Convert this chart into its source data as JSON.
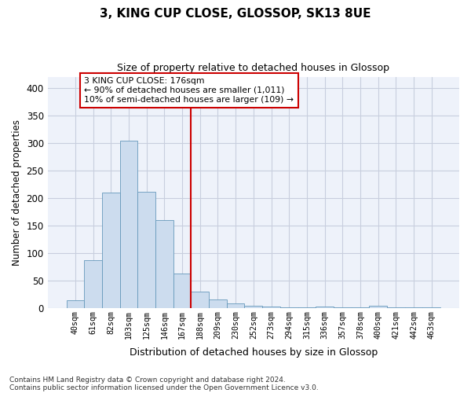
{
  "title": "3, KING CUP CLOSE, GLOSSOP, SK13 8UE",
  "subtitle": "Size of property relative to detached houses in Glossop",
  "xlabel": "Distribution of detached houses by size in Glossop",
  "ylabel": "Number of detached properties",
  "bar_color": "#ccdcee",
  "bar_edge_color": "#6699bb",
  "categories": [
    "40sqm",
    "61sqm",
    "82sqm",
    "103sqm",
    "125sqm",
    "146sqm",
    "167sqm",
    "188sqm",
    "209sqm",
    "230sqm",
    "252sqm",
    "273sqm",
    "294sqm",
    "315sqm",
    "336sqm",
    "357sqm",
    "378sqm",
    "400sqm",
    "421sqm",
    "442sqm",
    "463sqm"
  ],
  "values": [
    14,
    88,
    210,
    304,
    212,
    160,
    63,
    30,
    16,
    9,
    5,
    3,
    2,
    1,
    3,
    2,
    1,
    4,
    1,
    1,
    2
  ],
  "ylim": [
    0,
    420
  ],
  "yticks": [
    0,
    50,
    100,
    150,
    200,
    250,
    300,
    350,
    400
  ],
  "annotation_box_text": "3 KING CUP CLOSE: 176sqm\n← 90% of detached houses are smaller (1,011)\n10% of semi-detached houses are larger (109) →",
  "vline_x": 7.0,
  "vline_color": "#cc0000",
  "footnote1": "Contains HM Land Registry data © Crown copyright and database right 2024.",
  "footnote2": "Contains public sector information licensed under the Open Government Licence v3.0.",
  "background_color": "#eef2fa",
  "grid_color": "#c8cede"
}
